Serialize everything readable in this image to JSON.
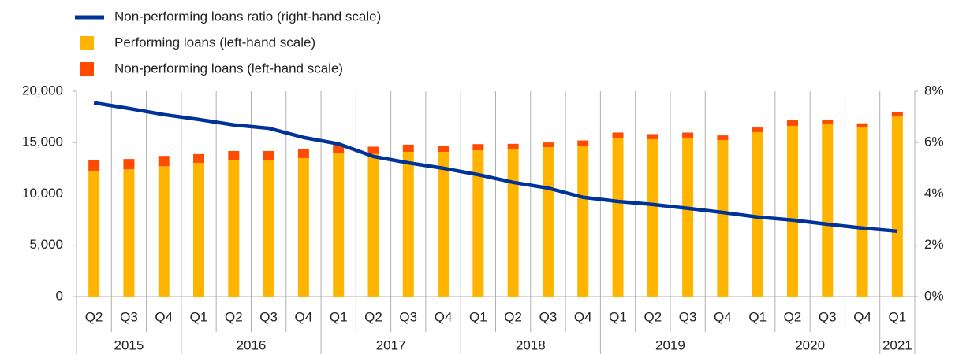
{
  "chart_data": {
    "type": "stacked-bar-line",
    "categories": [
      "Q2",
      "Q3",
      "Q4",
      "Q1",
      "Q2",
      "Q3",
      "Q4",
      "Q1",
      "Q2",
      "Q3",
      "Q4",
      "Q1",
      "Q2",
      "Q3",
      "Q4",
      "Q1",
      "Q2",
      "Q3",
      "Q4",
      "Q1",
      "Q2",
      "Q3",
      "Q4",
      "Q1"
    ],
    "years": [
      "2015",
      "2015",
      "2015",
      "2016",
      "2016",
      "2016",
      "2016",
      "2017",
      "2017",
      "2017",
      "2017",
      "2018",
      "2018",
      "2018",
      "2018",
      "2019",
      "2019",
      "2019",
      "2019",
      "2020",
      "2020",
      "2020",
      "2020",
      "2021"
    ],
    "series": [
      {
        "name": "Non-performing loans ratio (right-hand scale)",
        "color": "#003399",
        "kind": "line",
        "axis": "y2",
        "values": [
          7.55,
          7.33,
          7.09,
          6.9,
          6.69,
          6.56,
          6.2,
          5.95,
          5.46,
          5.21,
          5.0,
          4.75,
          4.45,
          4.23,
          3.87,
          3.71,
          3.59,
          3.44,
          3.28,
          3.1,
          2.98,
          2.82,
          2.67,
          2.55
        ]
      },
      {
        "name": "Performing loans (left-hand scale)",
        "color": "#FFB400",
        "kind": "bar",
        "values": [
          12260,
          12400,
          12700,
          13030,
          13330,
          13330,
          13490,
          13950,
          13900,
          14100,
          14100,
          14250,
          14330,
          14560,
          14710,
          15480,
          15330,
          15480,
          15250,
          16020,
          16630,
          16780,
          16480,
          17550
        ]
      },
      {
        "name": "Non-performing loans (left-hand scale)",
        "color": "#FF4B00",
        "kind": "bar",
        "values": [
          1000,
          1000,
          1000,
          850,
          850,
          850,
          850,
          840,
          700,
          700,
          550,
          600,
          550,
          450,
          500,
          500,
          500,
          500,
          450,
          450,
          550,
          400,
          400,
          400
        ]
      }
    ],
    "ylim": [
      0,
      20000
    ],
    "yticks": [
      0,
      {
        "value": 5000,
        "label": "5,000"
      },
      {
        "value": 10000,
        "label": "10,000"
      },
      {
        "value": 15000,
        "label": "15,000"
      },
      {
        "value": 20000,
        "label": "20,000"
      }
    ],
    "y2lim": [
      0,
      8
    ],
    "y2ticks": [
      {
        "value": 0,
        "label": "0%"
      },
      {
        "value": 2,
        "label": "2%"
      },
      {
        "value": 4,
        "label": "4%"
      },
      {
        "value": 6,
        "label": "6%"
      },
      {
        "value": 8,
        "label": "8%"
      }
    ]
  }
}
